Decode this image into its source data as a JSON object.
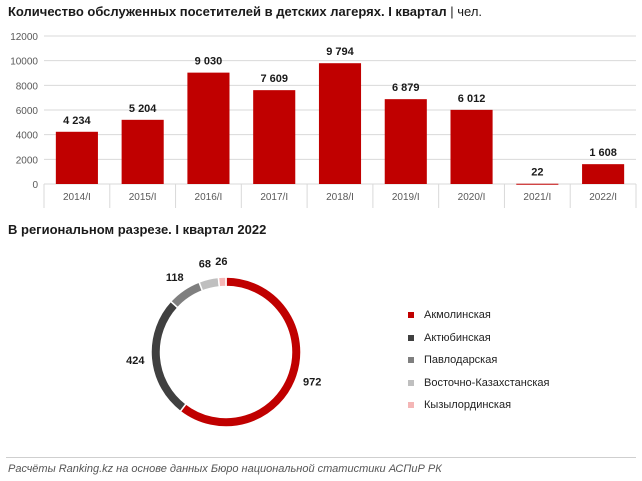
{
  "header": {
    "title": "Количество обслуженных посетителей в детских лагерях. I квартал",
    "unit": "чел."
  },
  "section2": {
    "title": "В региональном разрезе. I квартал 2022"
  },
  "footer": {
    "source": "Расчёты Ranking.kz на основе данных Бюро национальной статистики АСПиР РК"
  },
  "colors": {
    "bar": "#c00000",
    "grid": "#d9d9d9",
    "axis_text": "#595959"
  },
  "chart_data": [
    {
      "type": "bar",
      "title": "Количество обслуженных посетителей в детских лагерях. I квартал",
      "xlabel": "",
      "ylabel": "",
      "unit": "чел.",
      "categories": [
        "2014/I",
        "2015/I",
        "2016/I",
        "2017/I",
        "2018/I",
        "2019/I",
        "2020/I",
        "2021/I",
        "2022/I"
      ],
      "values": [
        4234,
        5204,
        9030,
        7609,
        9794,
        6879,
        6012,
        22,
        1608
      ],
      "value_labels": [
        "4 234",
        "5 204",
        "9 030",
        "7 609",
        "9 794",
        "6 879",
        "6 012",
        "22",
        "1 608"
      ],
      "ylim": [
        0,
        12000
      ],
      "yticks": [
        0,
        2000,
        4000,
        6000,
        8000,
        10000,
        12000
      ],
      "grid": true,
      "color": "#c00000"
    },
    {
      "type": "pie",
      "variant": "donut",
      "title": "В региональном разрезе. I квартал 2022",
      "labels": [
        "Акмолинская",
        "Актюбинская",
        "Павлодарская",
        "Восточно-Казахстанская",
        "Кызылординская"
      ],
      "values": [
        972,
        424,
        118,
        68,
        26
      ],
      "colors": [
        "#c00000",
        "#404040",
        "#7f7f7f",
        "#bfbfbf",
        "#f4b6b6"
      ],
      "legend": "right"
    }
  ]
}
